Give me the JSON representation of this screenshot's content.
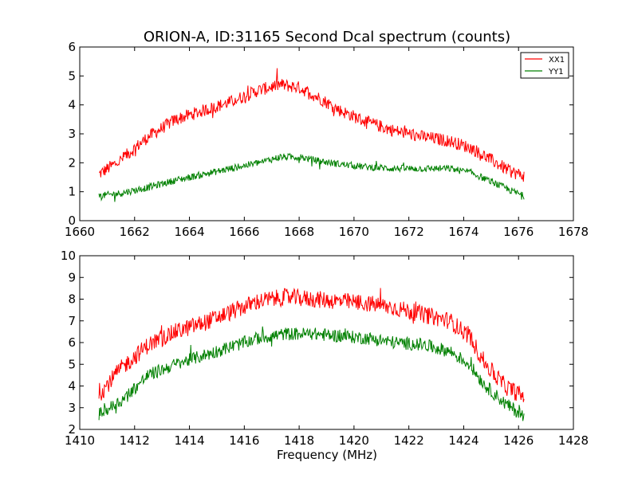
{
  "figure": {
    "title": "ORION-A, ID:31165 Second Dcal spectrum (counts)",
    "xlabel": "Frequency (MHz)"
  },
  "legend": {
    "placement": "top-right",
    "items": [
      {
        "label": "XX1",
        "color": "#ff0000"
      },
      {
        "label": "YY1",
        "color": "#008000"
      }
    ]
  },
  "chart_data": [
    {
      "type": "line",
      "title": "ORION-A, ID:31165 Second Dcal spectrum (counts)",
      "xlabel": "",
      "ylabel": "",
      "xlim": [
        1660,
        1678
      ],
      "ylim": [
        0,
        6
      ],
      "xticks": [
        "1660",
        "1662",
        "1664",
        "1666",
        "1668",
        "1670",
        "1672",
        "1674",
        "1676",
        "1678"
      ],
      "yticks": [
        "0",
        "1",
        "2",
        "3",
        "4",
        "5",
        "6"
      ],
      "grid": false,
      "legend": "top-right",
      "x": [
        1660.7,
        1661.5,
        1662.5,
        1663.5,
        1664.5,
        1665.5,
        1666.5,
        1667.3,
        1668.0,
        1668.8,
        1669.5,
        1670.5,
        1671.5,
        1672.5,
        1673.5,
        1674.3,
        1675.0,
        1675.7,
        1676.2
      ],
      "series": [
        {
          "name": "XX1",
          "color": "#ff0000",
          "values": [
            1.6,
            2.1,
            2.9,
            3.5,
            3.8,
            4.1,
            4.5,
            4.7,
            4.6,
            4.2,
            3.8,
            3.4,
            3.1,
            2.9,
            2.75,
            2.5,
            2.1,
            1.7,
            1.55
          ],
          "noise": 0.22
        },
        {
          "name": "YY1",
          "color": "#008000",
          "values": [
            0.85,
            0.95,
            1.15,
            1.4,
            1.6,
            1.8,
            2.0,
            2.2,
            2.2,
            2.05,
            1.95,
            1.85,
            1.8,
            1.8,
            1.8,
            1.65,
            1.35,
            1.05,
            0.85
          ],
          "noise": 0.12
        }
      ]
    },
    {
      "type": "line",
      "title": "",
      "xlabel": "Frequency (MHz)",
      "ylabel": "",
      "xlim": [
        1410,
        1428
      ],
      "ylim": [
        2,
        10
      ],
      "xticks": [
        "1410",
        "1412",
        "1414",
        "1416",
        "1418",
        "1420",
        "1422",
        "1424",
        "1426",
        "1428"
      ],
      "yticks": [
        "2",
        "3",
        "4",
        "5",
        "6",
        "7",
        "8",
        "9",
        "10"
      ],
      "grid": false,
      "x": [
        1410.7,
        1411.5,
        1412.5,
        1413.5,
        1414.5,
        1415.5,
        1416.5,
        1417.5,
        1418.5,
        1419.5,
        1420.5,
        1421.5,
        1422.5,
        1423.5,
        1424.2,
        1424.8,
        1425.5,
        1426.2
      ],
      "series": [
        {
          "name": "XX1",
          "color": "#ff0000",
          "values": [
            3.6,
            4.8,
            5.9,
            6.5,
            6.9,
            7.4,
            7.9,
            8.1,
            8.0,
            7.9,
            7.8,
            7.6,
            7.3,
            7.0,
            6.3,
            5.0,
            4.0,
            3.5
          ],
          "noise": 0.4
        },
        {
          "name": "YY1",
          "color": "#008000",
          "values": [
            2.7,
            3.3,
            4.5,
            5.0,
            5.4,
            5.8,
            6.2,
            6.4,
            6.4,
            6.3,
            6.2,
            6.0,
            5.9,
            5.6,
            5.0,
            4.0,
            3.2,
            2.6
          ],
          "noise": 0.3
        }
      ]
    }
  ]
}
